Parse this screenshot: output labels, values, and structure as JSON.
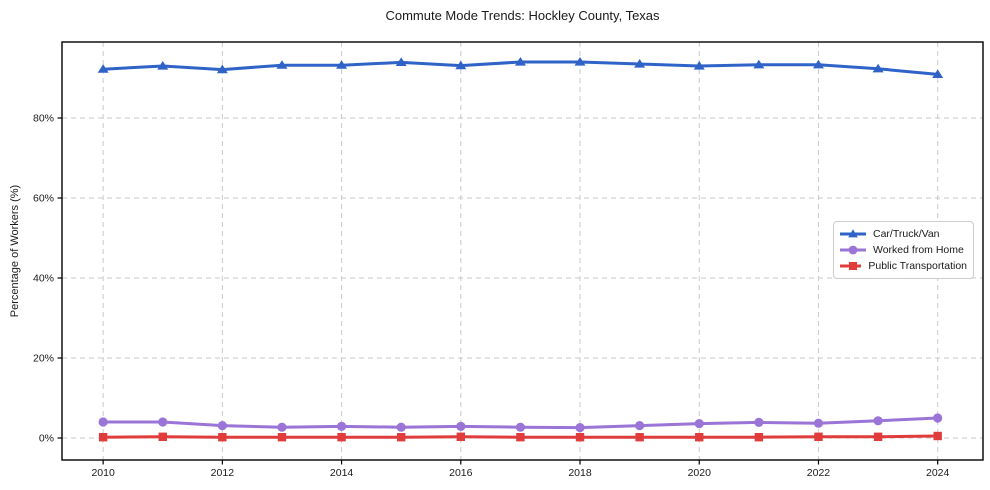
{
  "chart_data": {
    "type": "line",
    "title": "Commute Mode Trends: Hockley County, Texas",
    "xlabel": "",
    "ylabel": "Percentage of Workers (%)",
    "x": [
      2010,
      2011,
      2012,
      2013,
      2014,
      2015,
      2016,
      2017,
      2018,
      2019,
      2020,
      2021,
      2022,
      2023,
      2024
    ],
    "series": [
      {
        "name": "Car/Truck/Van",
        "color": "#2f63c7",
        "marker": "triangle",
        "values": [
          92.2,
          93.0,
          92.1,
          93.2,
          93.2,
          93.9,
          93.1,
          94.0,
          94.0,
          93.5,
          93.0,
          93.3,
          93.3,
          92.3,
          90.9
        ]
      },
      {
        "name": "Worked from Home",
        "color": "#9a74d6",
        "marker": "circle",
        "values": [
          4.0,
          4.0,
          3.1,
          2.7,
          2.9,
          2.7,
          2.9,
          2.7,
          2.6,
          3.1,
          3.6,
          3.9,
          3.7,
          4.3,
          5.0
        ]
      },
      {
        "name": "Public Transportation",
        "color": "#e03c3c",
        "marker": "square",
        "values": [
          0.2,
          0.3,
          0.2,
          0.2,
          0.2,
          0.2,
          0.3,
          0.2,
          0.2,
          0.2,
          0.2,
          0.2,
          0.3,
          0.3,
          0.5
        ]
      }
    ],
    "x_ticks": [
      2010,
      2012,
      2014,
      2016,
      2018,
      2020,
      2022,
      2024
    ],
    "x_tick_labels": [
      "2010",
      "2012",
      "2014",
      "2016",
      "2018",
      "2020",
      "2022",
      "2024"
    ],
    "y_ticks": [
      0,
      20,
      40,
      60,
      80
    ],
    "y_tick_labels": [
      "0%",
      "20%",
      "40%",
      "60%",
      "80%"
    ],
    "xlim": [
      2009.31,
      2024.76
    ],
    "ylim": [
      -5.5,
      99.0
    ],
    "grid": true,
    "grid_style": "dashed",
    "legend_position": "center-right"
  }
}
